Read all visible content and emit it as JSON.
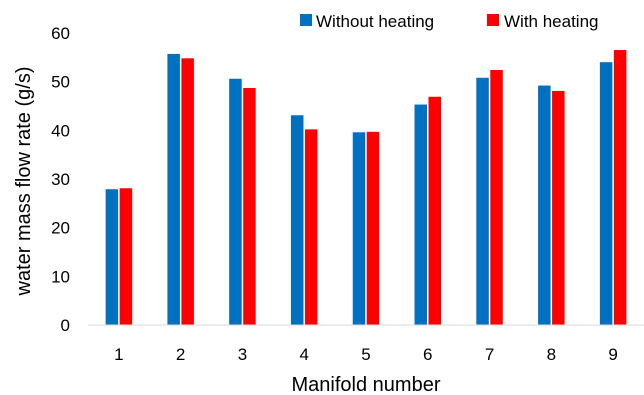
{
  "chart_data": {
    "type": "bar",
    "categories": [
      "1",
      "2",
      "3",
      "4",
      "5",
      "6",
      "7",
      "8",
      "9"
    ],
    "series": [
      {
        "name": "Without heating",
        "color": "#0070C0",
        "values": [
          27.9,
          55.7,
          50.6,
          43.1,
          39.6,
          45.3,
          50.8,
          49.2,
          54.0
        ]
      },
      {
        "name": "With heating",
        "color": "#FF0000",
        "values": [
          28.1,
          54.8,
          48.7,
          40.2,
          39.7,
          46.9,
          52.4,
          48.1,
          56.5
        ]
      }
    ],
    "xlabel": "Manifold number",
    "ylabel": "water mass flow rate (g/s)",
    "ylim": [
      0,
      60
    ],
    "yticks": [
      0,
      10,
      20,
      30,
      40,
      50,
      60
    ],
    "grid": false,
    "legend_position": "top-right"
  }
}
